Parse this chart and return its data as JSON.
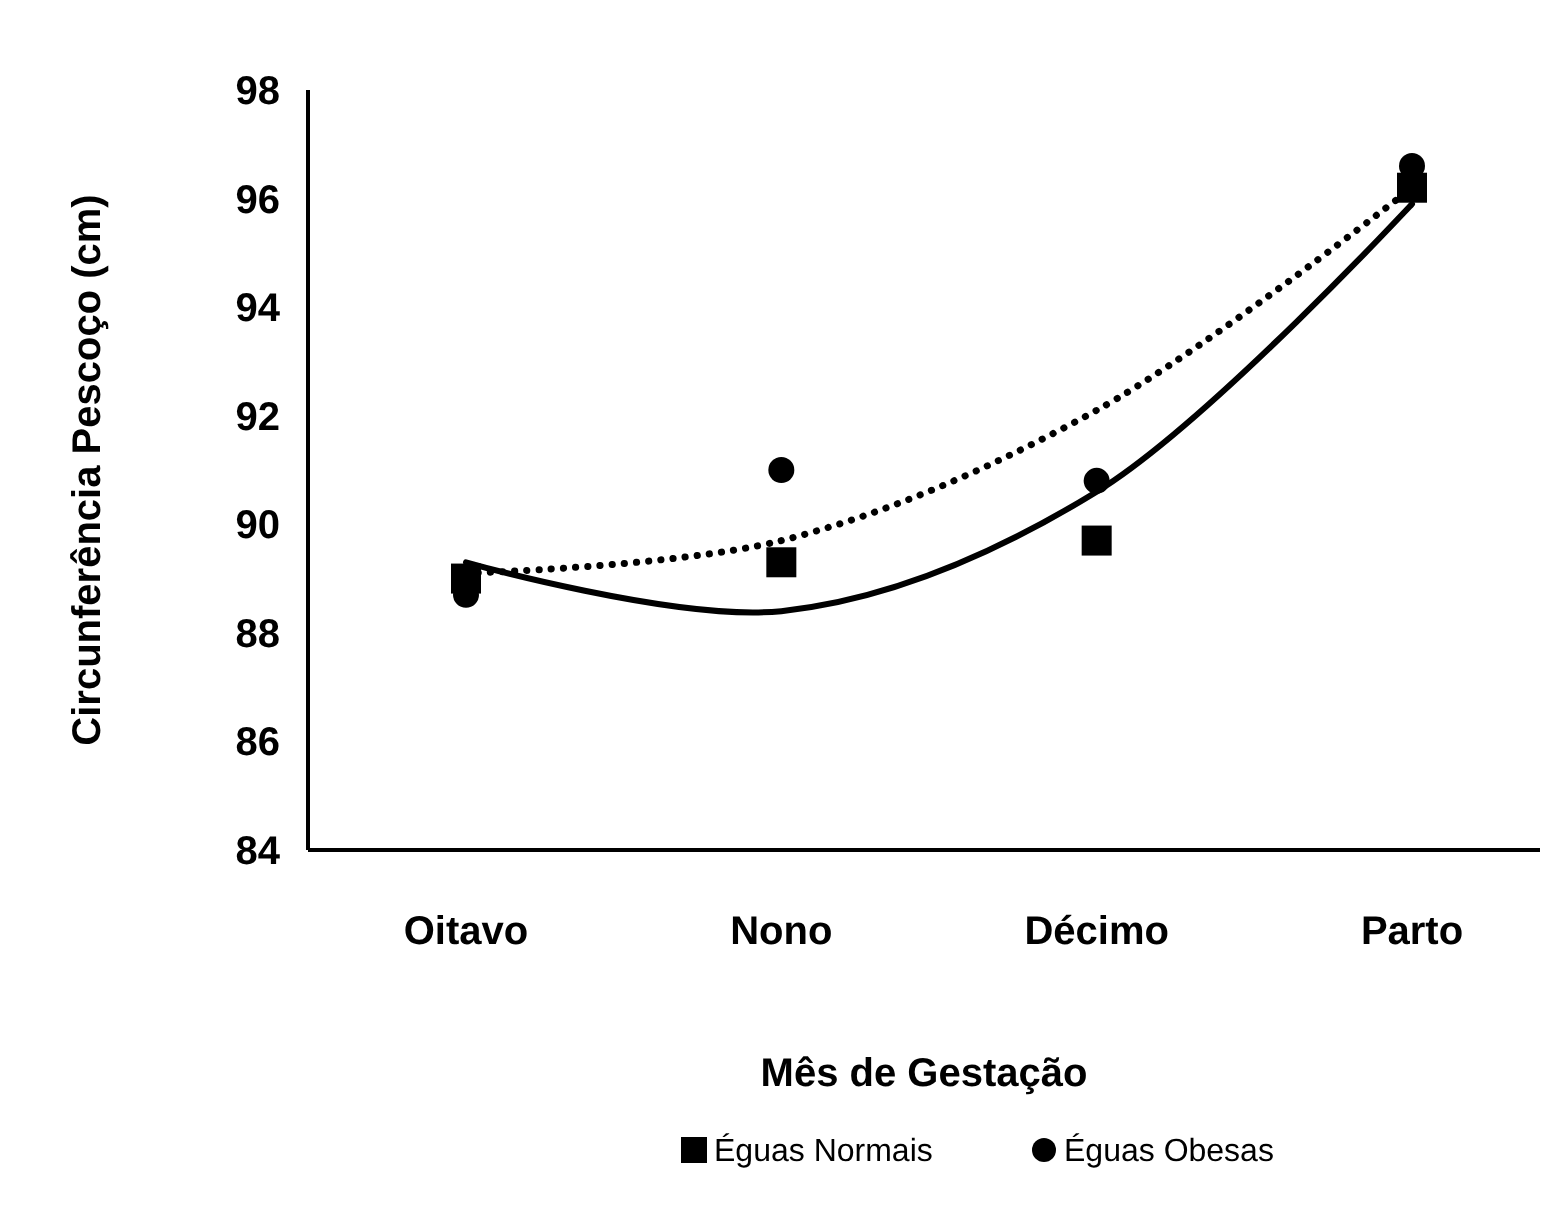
{
  "chart_data": {
    "type": "scatter",
    "xlabel": "Mês de Gestação",
    "ylabel": "Circunferência Pescoço (cm)",
    "categories": [
      "Oitavo",
      "Nono",
      "Décimo",
      "Parto"
    ],
    "ylim": [
      84,
      98
    ],
    "yticks": [
      84,
      86,
      88,
      90,
      92,
      94,
      96,
      98
    ],
    "grid": false,
    "legend": "bottom",
    "series": [
      {
        "name": "Éguas Normais",
        "marker": "square",
        "color": "#000000",
        "values": [
          89.0,
          89.3,
          89.7,
          96.2
        ]
      },
      {
        "name": "Éguas Obesas",
        "marker": "circle",
        "color": "#000000",
        "values": [
          88.7,
          91.0,
          90.8,
          96.6
        ]
      },
      {
        "type": "line",
        "marker": "none",
        "line_style": "solid",
        "color": "#000000",
        "x": [
          "Oitavo",
          "Nono",
          "Décimo",
          "Parto"
        ],
        "values": [
          89.3,
          88.4,
          90.6,
          95.9
        ]
      },
      {
        "type": "line",
        "marker": "none",
        "line_style": "dotted",
        "color": "#000000",
        "x": [
          "Oitavo",
          "Nono",
          "Décimo",
          "Parto"
        ],
        "values": [
          89.1,
          89.7,
          92.1,
          96.2
        ]
      }
    ]
  }
}
